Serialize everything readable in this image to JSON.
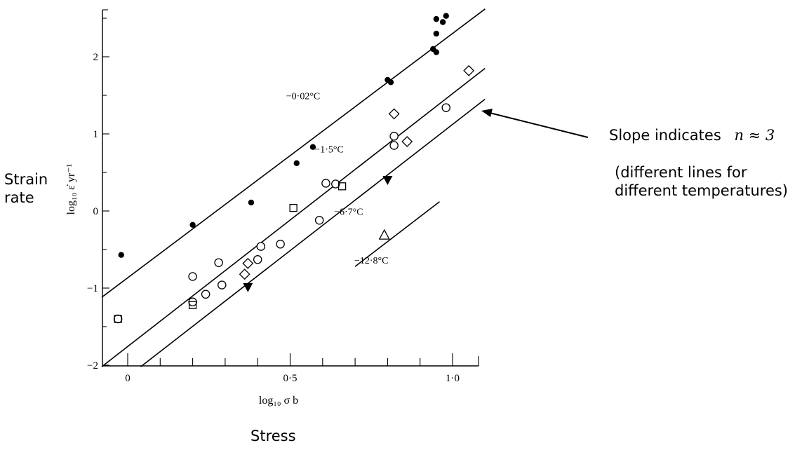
{
  "annotations": {
    "ylabel_left": [
      "Strain",
      "rate"
    ],
    "xlabel_bottom": "Stress",
    "slope_text": "Slope indicates",
    "slope_math": "n ≈ 3",
    "temps_note": [
      "(different lines for",
      "different temperatures)"
    ]
  },
  "chart_data": {
    "type": "scatter",
    "xlabel": "log₁₀ σ b",
    "ylabel": "log₁₀ ε̇ yr⁻¹",
    "xlim": [
      -0.08,
      1.1
    ],
    "ylim": [
      -2,
      2.6
    ],
    "x_ticks": [
      0,
      0.5,
      1.0
    ],
    "x_tick_labels": [
      "0",
      "0·5",
      "1·0"
    ],
    "y_ticks": [
      -2,
      -1,
      0,
      1,
      2
    ],
    "y_tick_labels": [
      "−2",
      "−1",
      "0",
      "1",
      "2"
    ],
    "grid": false,
    "series": [
      {
        "name": "−0·02°C",
        "marker": "filled-circle",
        "points": [
          [
            -0.02,
            -0.57
          ],
          [
            0.2,
            -0.18
          ],
          [
            0.38,
            0.11
          ],
          [
            0.52,
            0.62
          ],
          [
            0.57,
            0.83
          ],
          [
            0.8,
            1.7
          ],
          [
            0.81,
            1.67
          ],
          [
            0.94,
            2.1
          ],
          [
            0.95,
            2.06
          ],
          [
            0.95,
            2.3
          ],
          [
            0.95,
            2.49
          ],
          [
            0.97,
            2.45
          ],
          [
            0.98,
            2.53
          ]
        ],
        "fit_line": [
          [
            -0.08,
            -1.12
          ],
          [
            1.1,
            2.62
          ]
        ],
        "label_at": [
          0.54,
          1.45
        ]
      },
      {
        "name": "−1·5°C",
        "marker": "open-circle",
        "points": [
          [
            -0.03,
            -1.4
          ],
          [
            0.2,
            -0.85
          ],
          [
            0.2,
            -1.18
          ],
          [
            0.24,
            -1.08
          ],
          [
            0.28,
            -0.67
          ],
          [
            0.29,
            -0.96
          ],
          [
            0.4,
            -0.63
          ],
          [
            0.41,
            -0.46
          ],
          [
            0.47,
            -0.43
          ],
          [
            0.59,
            -0.12
          ],
          [
            0.61,
            0.36
          ],
          [
            0.64,
            0.35
          ],
          [
            0.82,
            0.85
          ],
          [
            0.82,
            0.97
          ],
          [
            0.98,
            1.34
          ]
        ],
        "fit_line": [
          [
            -0.08,
            -2.02
          ],
          [
            1.1,
            1.85
          ]
        ],
        "label_at": [
          0.62,
          0.76
        ]
      },
      {
        "name": "squares",
        "marker": "open-square",
        "points": [
          [
            -0.03,
            -1.4
          ],
          [
            0.2,
            -1.22
          ],
          [
            0.51,
            0.04
          ],
          [
            0.66,
            0.32
          ]
        ]
      },
      {
        "name": "diamonds",
        "marker": "open-diamond",
        "points": [
          [
            0.36,
            -0.82
          ],
          [
            0.37,
            -0.68
          ],
          [
            0.82,
            1.26
          ],
          [
            0.86,
            0.9
          ],
          [
            1.05,
            1.82
          ]
        ]
      },
      {
        "name": "−6·7°C",
        "marker": "filled-triangle-down",
        "points": [
          [
            0.37,
            -0.99
          ],
          [
            0.8,
            0.4
          ]
        ],
        "fit_line": [
          [
            0.04,
            -2.02
          ],
          [
            1.1,
            1.45
          ]
        ],
        "label_at": [
          0.68,
          -0.05
        ]
      },
      {
        "name": "−12·8°C",
        "marker": "open-triangle-up",
        "points": [
          [
            0.79,
            -0.31
          ]
        ],
        "fit_line": [
          [
            0.7,
            -0.72
          ],
          [
            0.96,
            0.12
          ]
        ],
        "label_at": [
          0.75,
          -0.68
        ]
      }
    ],
    "arrow": {
      "from_text": "slope_text",
      "points_to_line": "−6·7°C"
    }
  }
}
